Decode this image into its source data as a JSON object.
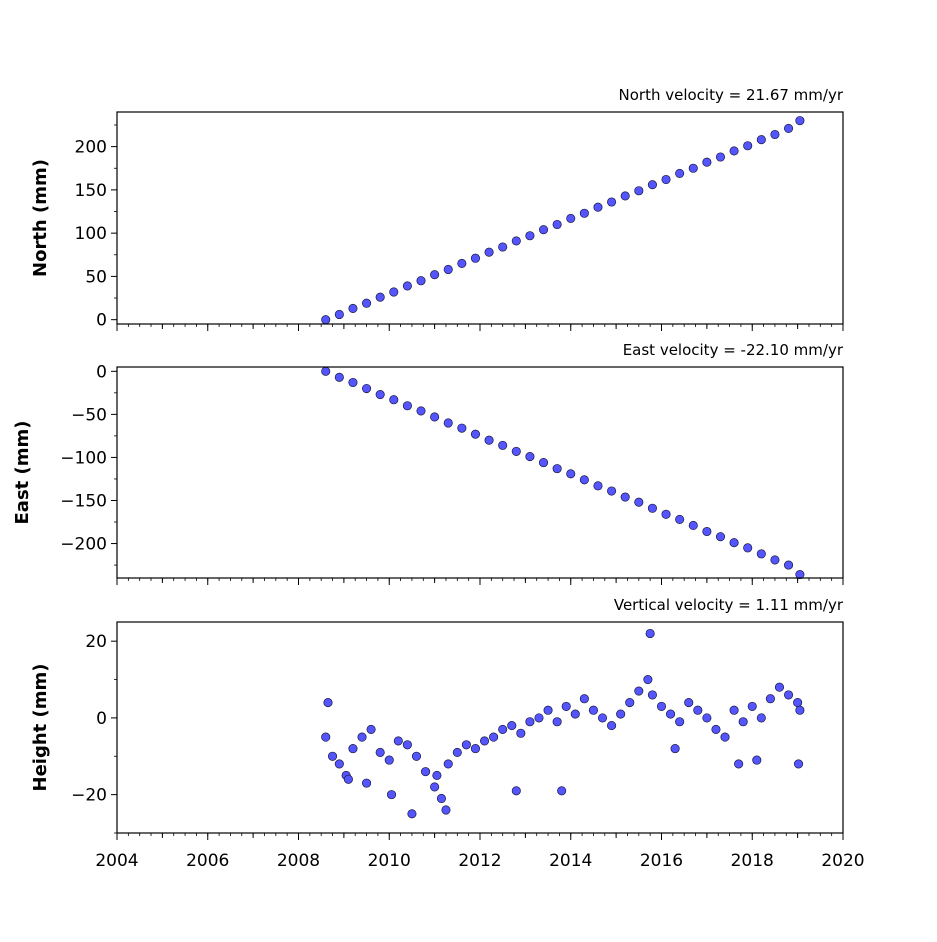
{
  "chart_data": [
    {
      "type": "scatter",
      "title": "North velocity = 21.67 mm/yr",
      "xlabel": "",
      "ylabel": "North (mm)",
      "xlim": [
        2004,
        2020
      ],
      "ylim": [
        -5,
        240
      ],
      "yticks": [
        "0",
        "50",
        "100",
        "150",
        "200"
      ],
      "ytick_values": [
        0,
        50,
        100,
        150,
        200
      ],
      "show_xtick_labels": false,
      "point_color": "#5555ff",
      "edge_color": "#1a1a40",
      "x": [
        2008.6,
        2008.9,
        2009.2,
        2009.5,
        2009.8,
        2010.1,
        2010.4,
        2010.7,
        2011.0,
        2011.3,
        2011.6,
        2011.9,
        2012.2,
        2012.5,
        2012.8,
        2013.1,
        2013.4,
        2013.7,
        2014.0,
        2014.3,
        2014.6,
        2014.9,
        2015.2,
        2015.5,
        2015.8,
        2016.1,
        2016.4,
        2016.7,
        2017.0,
        2017.3,
        2017.6,
        2017.9,
        2018.2,
        2018.5,
        2018.8,
        2019.05
      ],
      "y": [
        0,
        6,
        13,
        19,
        26,
        32,
        39,
        45,
        52,
        58,
        65,
        71,
        78,
        84,
        91,
        97,
        104,
        110,
        117,
        123,
        130,
        136,
        143,
        149,
        156,
        162,
        169,
        175,
        182,
        188,
        195,
        201,
        208,
        214,
        221,
        230
      ]
    },
    {
      "type": "scatter",
      "title": "East velocity = -22.10 mm/yr",
      "xlabel": "",
      "ylabel": "East (mm)",
      "xlim": [
        2004,
        2020
      ],
      "ylim": [
        -240,
        5
      ],
      "yticks": [
        "0",
        "−50",
        "−100",
        "−150",
        "−200"
      ],
      "ytick_values": [
        0,
        -50,
        -100,
        -150,
        -200
      ],
      "show_xtick_labels": false,
      "point_color": "#5555ff",
      "edge_color": "#1a1a40",
      "x": [
        2008.6,
        2008.9,
        2009.2,
        2009.5,
        2009.8,
        2010.1,
        2010.4,
        2010.7,
        2011.0,
        2011.3,
        2011.6,
        2011.9,
        2012.2,
        2012.5,
        2012.8,
        2013.1,
        2013.4,
        2013.7,
        2014.0,
        2014.3,
        2014.6,
        2014.9,
        2015.2,
        2015.5,
        2015.8,
        2016.1,
        2016.4,
        2016.7,
        2017.0,
        2017.3,
        2017.6,
        2017.9,
        2018.2,
        2018.5,
        2018.8,
        2019.05
      ],
      "y": [
        0,
        -7,
        -13,
        -20,
        -27,
        -33,
        -40,
        -46,
        -53,
        -60,
        -66,
        -73,
        -80,
        -86,
        -93,
        -99,
        -106,
        -113,
        -119,
        -126,
        -133,
        -139,
        -146,
        -152,
        -159,
        -166,
        -172,
        -179,
        -186,
        -192,
        -199,
        -205,
        -212,
        -219,
        -225,
        -236
      ]
    },
    {
      "type": "scatter",
      "title": "Vertical velocity = 1.11 mm/yr",
      "xlabel": "",
      "ylabel": "Height (mm)",
      "xlim": [
        2004,
        2020
      ],
      "ylim": [
        -30,
        25
      ],
      "yticks": [
        "20",
        "0",
        "−20"
      ],
      "ytick_values": [
        20,
        0,
        -20
      ],
      "show_xtick_labels": true,
      "xticks": [
        "2004",
        "2006",
        "2008",
        "2010",
        "2012",
        "2014",
        "2016",
        "2018",
        "2020"
      ],
      "xtick_values": [
        2004,
        2006,
        2008,
        2010,
        2012,
        2014,
        2016,
        2018,
        2020
      ],
      "point_color": "#5555ff",
      "edge_color": "#1a1a40",
      "x": [
        2008.6,
        2008.75,
        2008.9,
        2009.05,
        2009.2,
        2009.4,
        2009.6,
        2009.8,
        2010.0,
        2010.2,
        2010.4,
        2010.6,
        2010.8,
        2011.0,
        2011.15,
        2011.3,
        2011.5,
        2011.7,
        2011.9,
        2012.1,
        2012.3,
        2012.5,
        2012.7,
        2012.9,
        2013.1,
        2013.3,
        2013.5,
        2013.7,
        2013.9,
        2014.1,
        2014.3,
        2014.5,
        2014.7,
        2014.9,
        2015.1,
        2015.3,
        2015.5,
        2015.7,
        2015.8,
        2016.0,
        2016.2,
        2016.4,
        2016.6,
        2016.8,
        2017.0,
        2017.2,
        2017.4,
        2017.6,
        2017.8,
        2018.0,
        2018.2,
        2018.4,
        2018.6,
        2018.8,
        2019.0,
        2019.05,
        2008.65,
        2009.1,
        2009.5,
        2010.05,
        2010.5,
        2011.05,
        2011.25,
        2012.8,
        2013.8,
        2015.75,
        2016.3,
        2017.7,
        2018.1,
        2019.02
      ],
      "y": [
        -5,
        -10,
        -12,
        -15,
        -8,
        -5,
        -3,
        -9,
        -11,
        -6,
        -7,
        -10,
        -14,
        -18,
        -21,
        -12,
        -9,
        -7,
        -8,
        -6,
        -5,
        -3,
        -2,
        -4,
        -1,
        0,
        2,
        -1,
        3,
        1,
        5,
        2,
        0,
        -2,
        1,
        4,
        7,
        10,
        6,
        3,
        1,
        -1,
        4,
        2,
        0,
        -3,
        -5,
        2,
        -1,
        3,
        0,
        5,
        8,
        6,
        4,
        2,
        4,
        -16,
        -17,
        -20,
        -25,
        -15,
        -24,
        -19,
        -19,
        22,
        -8,
        -12,
        -11,
        -12
      ]
    }
  ]
}
